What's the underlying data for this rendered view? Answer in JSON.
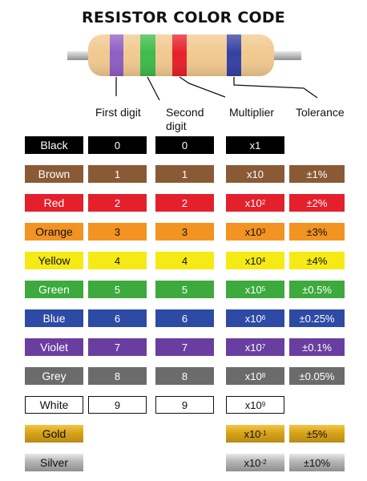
{
  "title": "RESISTOR COLOR CODE",
  "columns": {
    "first": "First digit",
    "second": "Second digit",
    "multiplier": "Multiplier",
    "tolerance": "Tolerance"
  },
  "band_colors": {
    "body": "#f2c98f",
    "band1": "#8e5ec4",
    "band2": "#3dbb4a",
    "band3": "#e7202b",
    "band4": "#3340a3",
    "lead": "#c9c9c9"
  },
  "rows": [
    {
      "name": "Black",
      "bg": "#000000",
      "fg": "#ffffff",
      "first": "0",
      "second": "0",
      "mult_base": "x1",
      "mult_exp": "",
      "tolerance": ""
    },
    {
      "name": "Brown",
      "bg": "#8a5a35",
      "fg": "#ffffff",
      "first": "1",
      "second": "1",
      "mult_base": "x10",
      "mult_exp": "",
      "tolerance": "±1%"
    },
    {
      "name": "Red",
      "bg": "#e4202c",
      "fg": "#ffffff",
      "first": "2",
      "second": "2",
      "mult_base": "x10",
      "mult_exp": "2",
      "tolerance": "±2%"
    },
    {
      "name": "Orange",
      "bg": "#f39322",
      "fg": "#111111",
      "first": "3",
      "second": "3",
      "mult_base": "x10",
      "mult_exp": "3",
      "tolerance": "±3%"
    },
    {
      "name": "Yellow",
      "bg": "#f6ea14",
      "fg": "#111111",
      "first": "4",
      "second": "4",
      "mult_base": "x10",
      "mult_exp": "4",
      "tolerance": "±4%"
    },
    {
      "name": "Green",
      "bg": "#3caa3d",
      "fg": "#ffffff",
      "first": "5",
      "second": "5",
      "mult_base": "x10",
      "mult_exp": "5",
      "tolerance": "±0.5%"
    },
    {
      "name": "Blue",
      "bg": "#2d4aa5",
      "fg": "#ffffff",
      "first": "6",
      "second": "6",
      "mult_base": "x10",
      "mult_exp": "6",
      "tolerance": "±0.25%"
    },
    {
      "name": "Violet",
      "bg": "#6a3ea1",
      "fg": "#ffffff",
      "first": "7",
      "second": "7",
      "mult_base": "x10",
      "mult_exp": "7",
      "tolerance": "±0.1%"
    },
    {
      "name": "Grey",
      "bg": "#6b6b6b",
      "fg": "#ffffff",
      "first": "8",
      "second": "8",
      "mult_base": "x10",
      "mult_exp": "8",
      "tolerance": "±0.05%"
    },
    {
      "name": "White",
      "bg": "#ffffff",
      "fg": "#111111",
      "first": "9",
      "second": "9",
      "mult_base": "x10",
      "mult_exp": "9",
      "tolerance": ""
    },
    {
      "name": "Gold",
      "bg": "gold",
      "fg": "#111111",
      "first": "",
      "second": "",
      "mult_base": "x10",
      "mult_exp": "-1",
      "tolerance": "±5%"
    },
    {
      "name": "Silver",
      "bg": "silver",
      "fg": "#111111",
      "first": "",
      "second": "",
      "mult_base": "x10",
      "mult_exp": "-2",
      "tolerance": "±10%"
    }
  ]
}
